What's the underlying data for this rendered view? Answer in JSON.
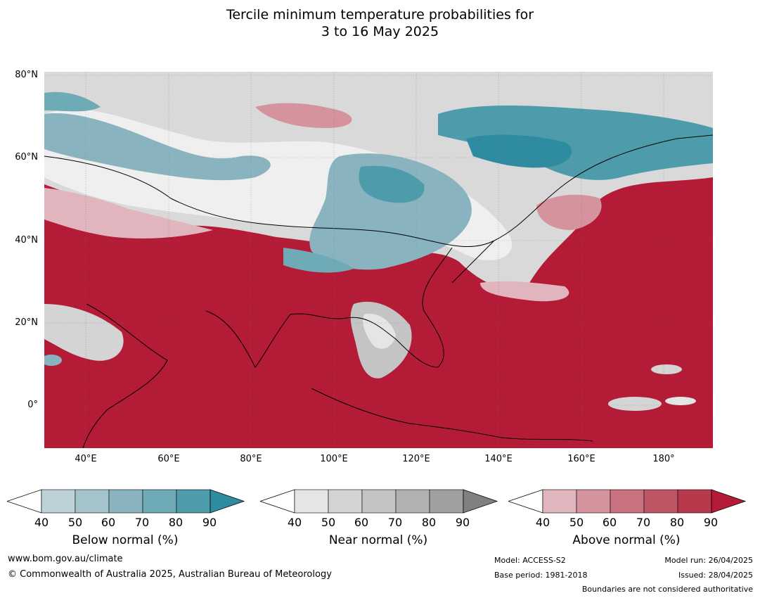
{
  "title": {
    "line1": "Tercile minimum temperature probabilities for",
    "line2": "3 to 16 May 2025"
  },
  "map": {
    "lat_labels": [
      "80°N",
      "60°N",
      "40°N",
      "20°N",
      "0°"
    ],
    "lon_labels": [
      "40°E",
      "60°E",
      "80°E",
      "100°E",
      "120°E",
      "140°E",
      "160°E",
      "180°"
    ]
  },
  "colorbars": [
    {
      "id": "below",
      "title": "Below normal (%)",
      "ticks": [
        "40",
        "50",
        "60",
        "70",
        "80",
        "90"
      ],
      "colors": [
        "#bcd1d8",
        "#a4c4cb",
        "#89b4bf",
        "#6eabb7",
        "#4e9cab",
        "#2e8ba0"
      ]
    },
    {
      "id": "near",
      "title": "Near normal (%)",
      "ticks": [
        "40",
        "50",
        "60",
        "70",
        "80",
        "90"
      ],
      "colors": [
        "#e5e5e5",
        "#d4d4d4",
        "#c4c4c4",
        "#b1b1b1",
        "#a0a0a0",
        "#808080"
      ]
    },
    {
      "id": "above",
      "title": "Above normal (%)",
      "ticks": [
        "40",
        "50",
        "60",
        "70",
        "80",
        "90"
      ],
      "colors": [
        "#e0b5bd",
        "#d4939d",
        "#c87280",
        "#c05566",
        "#b8384c",
        "#b31b36"
      ]
    }
  ],
  "footer": {
    "url": "www.bom.gov.au/climate",
    "copyright": "© Commonwealth of Australia 2025, Australian Bureau of Meteorology",
    "model": "Model: ACCESS-S2",
    "base_period": "Base period: 1981-2018",
    "model_run": "Model run: 26/04/2025",
    "issued": "Issued: 28/04/2025",
    "boundaries_note": "Boundaries are not considered authoritative"
  }
}
